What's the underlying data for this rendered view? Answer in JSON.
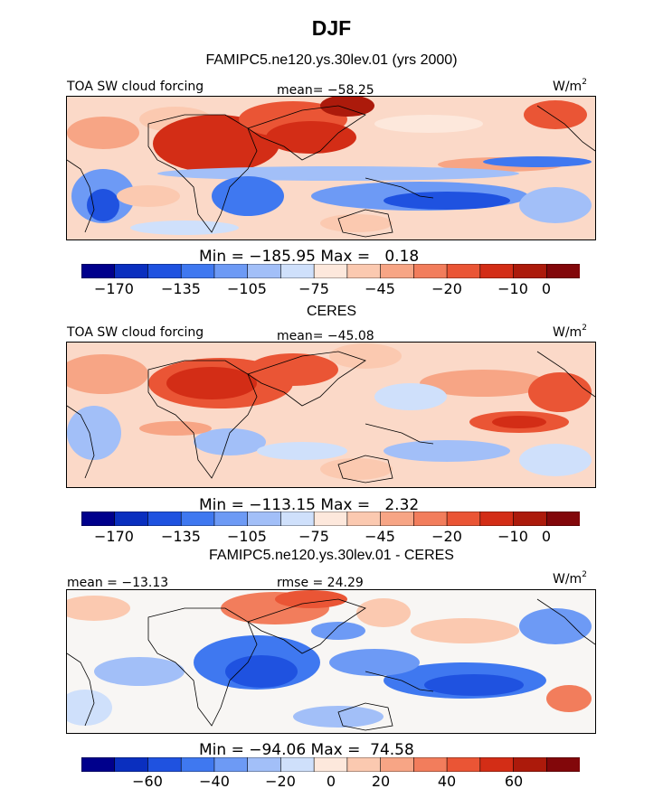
{
  "figure": {
    "title": "DJF",
    "subtitle": "FAMIPC5.ne120.ys.30lev.01 (yrs 2000)"
  },
  "panels": [
    {
      "id": "model",
      "heading": "",
      "left_label": "TOA SW cloud forcing",
      "center_label": "mean= −58.25",
      "units": "W/m",
      "units_sup": "2",
      "minmax": "Min = −185.95 Max =   0.18",
      "colorbar_ticks": [
        "−170",
        "−135",
        "−105",
        "−75",
        "−45",
        "−20",
        "−10",
        "0"
      ],
      "colorbar_colors": [
        "#00008c",
        "#0a2fbf",
        "#1f52e0",
        "#3f78f0",
        "#6d9af5",
        "#a2bff8",
        "#cfe0fb",
        "#fde8dc",
        "#fbc9b0",
        "#f7a585",
        "#f27d5c",
        "#ea5535",
        "#d32d16",
        "#ac1a0b",
        "#82070a"
      ]
    },
    {
      "id": "obs",
      "heading": "CERES",
      "left_label": "TOA SW cloud forcing",
      "center_label": "mean= −45.08",
      "units": "W/m",
      "units_sup": "2",
      "minmax": "Min = −113.15 Max =   2.32",
      "colorbar_ticks": [
        "−170",
        "−135",
        "−105",
        "−75",
        "−45",
        "−20",
        "−10",
        "0"
      ],
      "colorbar_colors": [
        "#00008c",
        "#0a2fbf",
        "#1f52e0",
        "#3f78f0",
        "#6d9af5",
        "#a2bff8",
        "#cfe0fb",
        "#fde8dc",
        "#fbc9b0",
        "#f7a585",
        "#f27d5c",
        "#ea5535",
        "#d32d16",
        "#ac1a0b",
        "#82070a"
      ]
    },
    {
      "id": "diff",
      "heading": "FAMIPC5.ne120.ys.30lev.01 - CERES",
      "left_label": "mean = −13.13",
      "center_label": "rmse =  24.29",
      "units": "W/m",
      "units_sup": "2",
      "minmax": "Min = −94.06 Max =  74.58",
      "colorbar_ticks": [
        "−60",
        "−40",
        "−20",
        "0",
        "20",
        "40",
        "60"
      ],
      "colorbar_colors": [
        "#00008c",
        "#0a2fbf",
        "#1f52e0",
        "#3f78f0",
        "#6d9af5",
        "#a2bff8",
        "#cfe0fb",
        "#fde8dc",
        "#fbc9b0",
        "#f7a585",
        "#f27d5c",
        "#ea5535",
        "#d32d16",
        "#ac1a0b",
        "#82070a"
      ]
    }
  ],
  "chart_data": [
    {
      "type": "heatmap",
      "title": "TOA SW cloud forcing (FAMIPC5.ne120.ys.30lev.01, DJF)",
      "units": "W/m2",
      "mean": -58.25,
      "min": -185.95,
      "max": 0.18,
      "contour_levels": [
        -170,
        -150,
        -135,
        -120,
        -105,
        -90,
        -75,
        -60,
        -45,
        -30,
        -20,
        -15,
        -10,
        -5,
        0
      ],
      "colorbar_labels": [
        -170,
        -135,
        -105,
        -75,
        -45,
        -20,
        -10,
        0
      ]
    },
    {
      "type": "heatmap",
      "title": "TOA SW cloud forcing (CERES, DJF)",
      "units": "W/m2",
      "mean": -45.08,
      "min": -113.15,
      "max": 2.32,
      "contour_levels": [
        -170,
        -150,
        -135,
        -120,
        -105,
        -90,
        -75,
        -60,
        -45,
        -30,
        -20,
        -15,
        -10,
        -5,
        0
      ],
      "colorbar_labels": [
        -170,
        -135,
        -105,
        -75,
        -45,
        -20,
        -10,
        0
      ]
    },
    {
      "type": "heatmap",
      "title": "FAMIPC5.ne120.ys.30lev.01 - CERES",
      "units": "W/m2",
      "mean": -13.13,
      "rmse": 24.29,
      "min": -94.06,
      "max": 74.58,
      "contour_levels": [
        -70,
        -60,
        -50,
        -40,
        -30,
        -20,
        -10,
        0,
        10,
        20,
        30,
        40,
        50,
        60,
        70
      ],
      "colorbar_labels": [
        -60,
        -40,
        -20,
        0,
        20,
        40,
        60
      ]
    }
  ]
}
